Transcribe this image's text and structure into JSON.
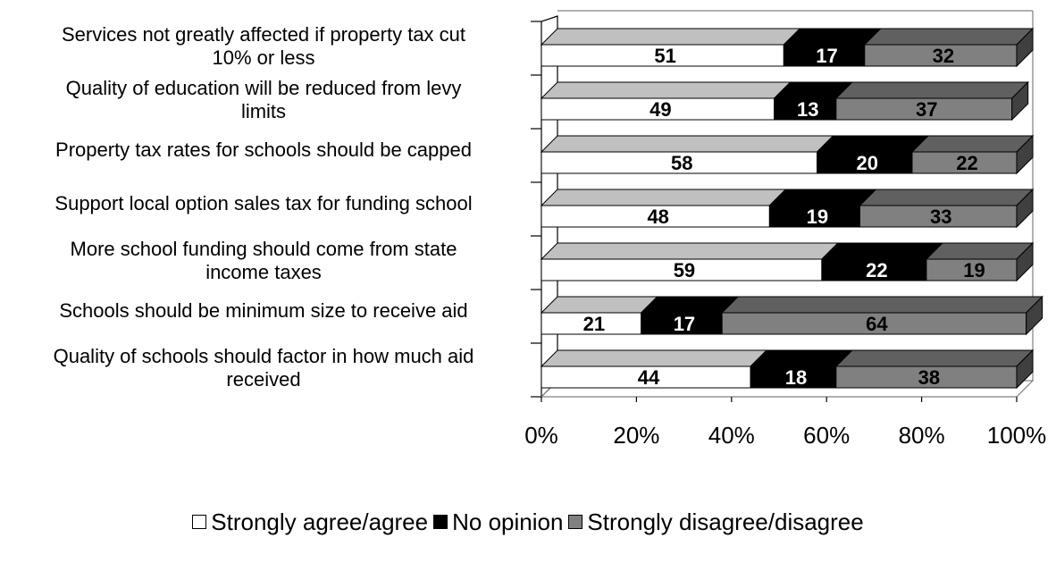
{
  "chart_data": {
    "type": "bar",
    "orientation": "horizontal",
    "stacked": true,
    "percent_stacked": true,
    "three_d": true,
    "categories": [
      "Services not greatly affected if property tax cut 10% or less",
      "Quality of education will be reduced from levy limits",
      "Property tax rates for schools should be capped",
      "Support local option sales tax for funding school",
      "More school funding should come from state income taxes",
      "Schools should be minimum size to receive aid",
      "Quality of schools should factor in how much aid received"
    ],
    "series": [
      {
        "name": "Strongly agree/agree",
        "values": [
          51,
          49,
          58,
          48,
          59,
          21,
          44
        ],
        "color": "#ffffff",
        "label_color": "#000000"
      },
      {
        "name": "No opinion",
        "values": [
          17,
          13,
          20,
          19,
          22,
          17,
          18
        ],
        "color": "#000000",
        "label_color": "#ffffff"
      },
      {
        "name": "Strongly disagree/disagree",
        "values": [
          32,
          37,
          22,
          33,
          19,
          64,
          38
        ],
        "color": "#808080",
        "label_color": "#000000"
      }
    ],
    "x_ticks": [
      "0%",
      "20%",
      "40%",
      "60%",
      "80%",
      "100%"
    ],
    "xlim": [
      0,
      100
    ],
    "title": "",
    "xlabel": "",
    "ylabel": "",
    "legend_position": "bottom",
    "grid": false
  },
  "category_lines": [
    [
      "Services not greatly affected if property tax cut",
      "10% or less"
    ],
    [
      "Quality of education will be reduced from levy",
      "limits"
    ],
    [
      "Property tax rates for schools should be capped"
    ],
    [
      "Support local option sales tax for funding school"
    ],
    [
      "More school funding should come from state",
      "income taxes"
    ],
    [
      "Schools should be minimum size to receive aid"
    ],
    [
      "Quality of schools should factor in how much aid",
      "received"
    ]
  ]
}
